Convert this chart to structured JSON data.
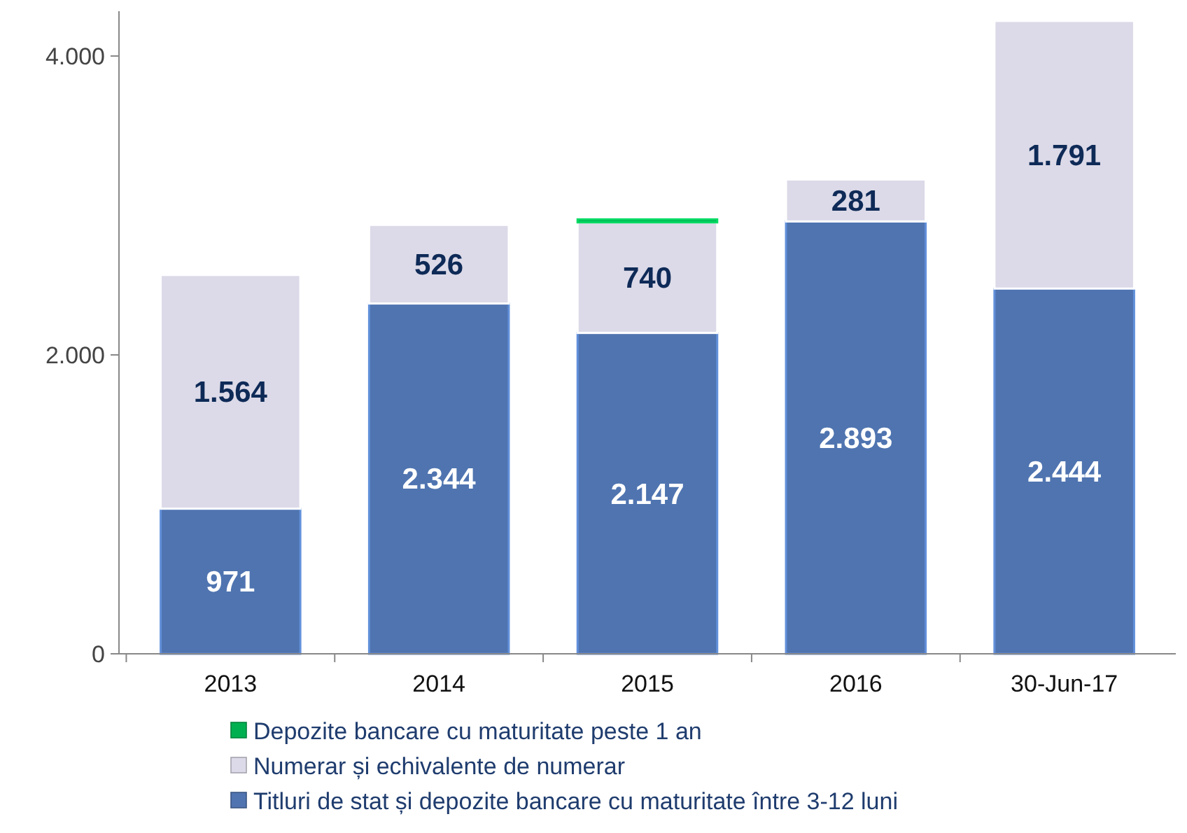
{
  "chart_data": {
    "type": "bar",
    "stacked": true,
    "categories": [
      "2013",
      "2014",
      "2015",
      "2016",
      "30-Jun-17"
    ],
    "ylim": [
      0,
      4300
    ],
    "yticks": [
      {
        "value": 0,
        "label": "0"
      },
      {
        "value": 2000,
        "label": "2.000"
      },
      {
        "value": 4000,
        "label": "4.000"
      }
    ],
    "legend": "bottom",
    "grid": false,
    "series": [
      {
        "name": "Titluri de stat și depozite bancare cu maturitate între 3-12 luni",
        "color": "#4f74b0",
        "values": [
          971,
          2344,
          2147,
          2893,
          2444
        ],
        "value_labels": [
          "971",
          "2.344",
          "2.147",
          "2.893",
          "2.444"
        ]
      },
      {
        "name": "Numerar și echivalente de numerar",
        "color": "#dcdae8",
        "values": [
          1564,
          526,
          740,
          281,
          1791
        ],
        "value_labels": [
          "1.564",
          "526",
          "740",
          "281",
          "1.791"
        ]
      },
      {
        "name": "Depozite bancare cu maturitate peste 1 an",
        "color": "#00b050",
        "values": [
          null,
          null,
          20,
          null,
          null
        ],
        "value_labels": [
          null,
          null,
          null,
          null,
          null
        ]
      }
    ]
  }
}
